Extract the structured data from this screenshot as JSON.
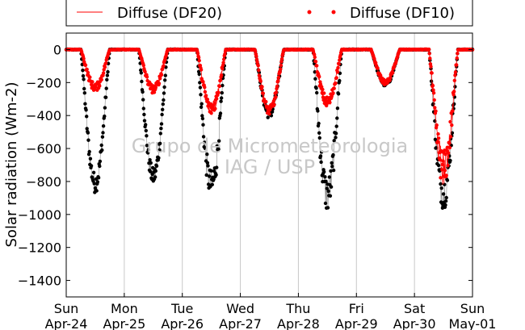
{
  "chart_data": {
    "type": "line",
    "ylabel": "Solar radiation (Wm-2)",
    "ylim": [
      -1500,
      100
    ],
    "yticks": [
      0,
      -200,
      -400,
      -600,
      -800,
      -1000,
      -1200,
      -1400
    ],
    "xlim": [
      "2014-04-24",
      "2014-05-01"
    ],
    "xtick_days": [
      "Sun",
      "Mon",
      "Tue",
      "Wed",
      "Thu",
      "Fri",
      "Sat",
      "Sun"
    ],
    "xtick_dates": [
      "Apr-24",
      "Apr-25",
      "Apr-26",
      "Apr-27",
      "Apr-28",
      "Apr-29",
      "Apr-30",
      "May-01"
    ],
    "grid": "x",
    "legend_position": "top",
    "watermark": [
      "Grupo de Micrometeorologia",
      "IAG / USP"
    ],
    "series": [
      {
        "name": "",
        "color": "#000000",
        "style": "dots-with-line",
        "days": [
          {
            "day": 0,
            "min": -810,
            "spread": 120
          },
          {
            "day": 1,
            "min": -770,
            "spread": 110
          },
          {
            "day": 2,
            "min": -820,
            "spread": 180
          },
          {
            "day": 3,
            "min": -390,
            "spread": 60
          },
          {
            "day": 4,
            "min": -880,
            "spread": 220
          },
          {
            "day": 5,
            "min": -210,
            "spread": 30
          },
          {
            "day": 6,
            "min": -870,
            "spread": 200
          }
        ]
      },
      {
        "name": "Diffuse (DF20)",
        "color": "#ff0000",
        "style": "line",
        "days": [
          {
            "day": 0,
            "min": -230,
            "spread": 50
          },
          {
            "day": 1,
            "min": -240,
            "spread": 50
          },
          {
            "day": 2,
            "min": -360,
            "spread": 80
          },
          {
            "day": 3,
            "min": -370,
            "spread": 60
          },
          {
            "day": 4,
            "min": -320,
            "spread": 70
          },
          {
            "day": 5,
            "min": -200,
            "spread": 30
          },
          {
            "day": 6,
            "min": -720,
            "spread": 220
          }
        ]
      },
      {
        "name": "Diffuse (DF10)",
        "color": "#ff0000",
        "style": "dots",
        "days": [
          {
            "day": 0,
            "min": -230,
            "spread": 50
          },
          {
            "day": 1,
            "min": -240,
            "spread": 50
          },
          {
            "day": 2,
            "min": -360,
            "spread": 80
          },
          {
            "day": 3,
            "min": -370,
            "spread": 60
          },
          {
            "day": 4,
            "min": -320,
            "spread": 70
          },
          {
            "day": 5,
            "min": -200,
            "spread": 30
          },
          {
            "day": 6,
            "min": -720,
            "spread": 220
          }
        ]
      }
    ]
  }
}
